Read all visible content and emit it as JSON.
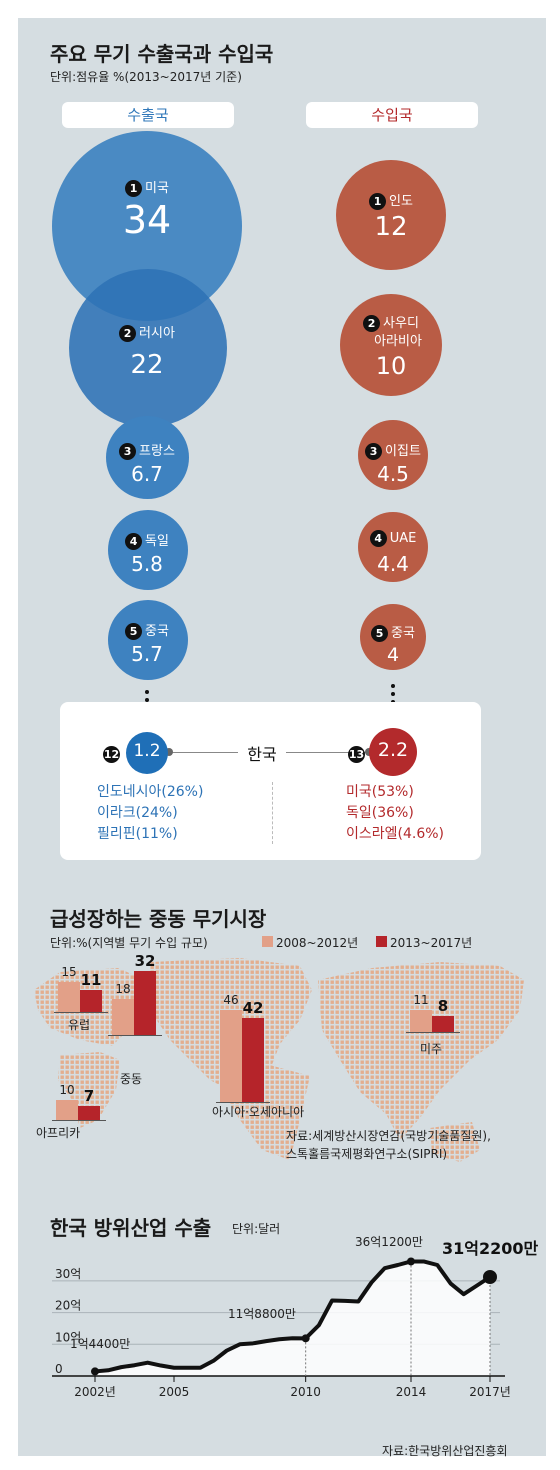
{
  "section1": {
    "title": "주요 무기 수출국과 수입국",
    "unit": "단위:점유율 %(2013~2017년 기준)",
    "exporters_label": "수출국",
    "importers_label": "수입국",
    "exporters": [
      {
        "rank": "1",
        "country": "미국",
        "value": "34"
      },
      {
        "rank": "2",
        "country": "러시아",
        "value": "22"
      },
      {
        "rank": "3",
        "country": "프랑스",
        "value": "6.7"
      },
      {
        "rank": "4",
        "country": "독일",
        "value": "5.8"
      },
      {
        "rank": "5",
        "country": "중국",
        "value": "5.7"
      }
    ],
    "importers": [
      {
        "rank": "1",
        "country": "인도",
        "value": "12"
      },
      {
        "rank": "2",
        "country_line1": "사우디",
        "country_line2": "아라비아",
        "value": "10"
      },
      {
        "rank": "3",
        "country": "이집트",
        "value": "4.5"
      },
      {
        "rank": "4",
        "country": "UAE",
        "value": "4.4"
      },
      {
        "rank": "5",
        "country": "중국",
        "value": "4"
      }
    ],
    "korea": {
      "label": "한국",
      "export_rank": "12",
      "export_value": "1.2",
      "import_rank": "13",
      "import_value": "2.2",
      "export_destinations": [
        "인도네시아(26%)",
        "이라크(24%)",
        "필리핀(11%)"
      ],
      "import_sources": [
        "미국(53%)",
        "독일(36%)",
        "이스라엘(4.6%)"
      ]
    },
    "colors": {
      "export": "#3f83c0",
      "import": "#b95c45",
      "korea_export": "#1f6fb7",
      "korea_import": "#b32a2c"
    }
  },
  "section2": {
    "title": "급성장하는 중동 무기시장",
    "unit": "단위:%(지역별 무기 수입 규모)",
    "legend_a": "2008~2012년",
    "legend_b": "2013~2017년",
    "source": [
      "자료:세계방산시장연감(국방기술품질원),",
      "스톡홀름국제평화연구소(SIPRI)"
    ],
    "colors": {
      "a": "#e2a088",
      "b": "#b5242a",
      "map": "#e3ae8e"
    }
  },
  "section3": {
    "title": "한국 방위산업 수출",
    "unit": "단위:달러",
    "source": "자료:한국방위산업진흥회",
    "annotations": [
      "1억4400만",
      "11억8800만",
      "36억1200만",
      "31억2200만"
    ]
  },
  "chart_data": [
    {
      "type": "bar",
      "title": "급성장하는 중동 무기시장",
      "ylabel": "단위:%(지역별 무기 수입 규모)",
      "categories": [
        "유럽",
        "중동",
        "아시아·오세아니아",
        "아프리카",
        "미주"
      ],
      "series": [
        {
          "name": "2008~2012년",
          "values": [
            15,
            18,
            46,
            10,
            11
          ]
        },
        {
          "name": "2013~2017년",
          "values": [
            11,
            32,
            42,
            7,
            8
          ]
        }
      ]
    },
    {
      "type": "area",
      "title": "한국 방위산업 수출",
      "ylabel": "단위:달러",
      "x_ticks": [
        "2002년",
        "2005",
        "2010",
        "2014",
        "2017년"
      ],
      "y_ticks": [
        "0",
        "10억",
        "20억",
        "30억"
      ],
      "ylim": [
        0,
        3500000000
      ],
      "xlim": [
        2002,
        2017
      ],
      "x": [
        2002,
        2002.5,
        2003,
        2003.5,
        2004,
        2004.5,
        2005,
        2005.5,
        2006,
        2006.5,
        2007,
        2007.5,
        2008,
        2008.5,
        2009,
        2009.5,
        2010,
        2010.5,
        2011,
        2011.5,
        2012,
        2012.5,
        2013,
        2013.5,
        2014,
        2014.5,
        2015,
        2015.5,
        2016,
        2016.5,
        2017
      ],
      "values": [
        144000000,
        180000000,
        280000000,
        340000000,
        420000000,
        330000000,
        260000000,
        260000000,
        260000000,
        480000000,
        800000000,
        1000000000,
        1030000000,
        1100000000,
        1160000000,
        1190000000,
        1188000000,
        1600000000,
        2380000000,
        2370000000,
        2350000000,
        2950000000,
        3400000000,
        3500000000,
        3612000000,
        3610000000,
        3500000000,
        2920000000,
        2580000000,
        2850000000,
        3122000000
      ]
    }
  ]
}
